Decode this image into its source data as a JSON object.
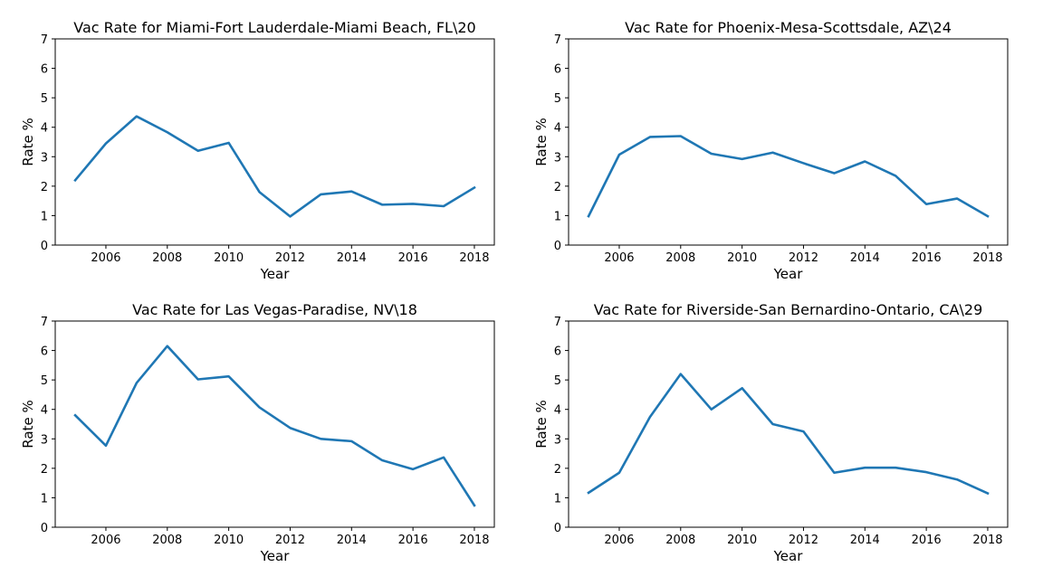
{
  "chart_data": [
    {
      "type": "line",
      "title": "Vac Rate for Miami-Fort Lauderdale-Miami Beach, FL\\20",
      "xlabel": "Year",
      "ylabel": "Rate %",
      "xlim": [
        2004.35,
        2018.65
      ],
      "ylim": [
        0,
        7
      ],
      "xticks": [
        "2006",
        "2008",
        "2010",
        "2012",
        "2014",
        "2016",
        "2018"
      ],
      "yticks": [
        "0",
        "1",
        "2",
        "3",
        "4",
        "5",
        "6",
        "7"
      ],
      "color": "#1f77b4",
      "grid": false,
      "x": [
        2005,
        2006,
        2007,
        2008,
        2009,
        2010,
        2011,
        2012,
        2013,
        2014,
        2015,
        2016,
        2017,
        2018
      ],
      "values": [
        2.2,
        3.45,
        4.37,
        3.83,
        3.2,
        3.47,
        1.8,
        0.97,
        1.72,
        1.82,
        1.37,
        1.4,
        1.32,
        1.95
      ]
    },
    {
      "type": "line",
      "title": "Vac Rate for Phoenix-Mesa-Scottsdale, AZ\\24",
      "xlabel": "Year",
      "ylabel": "Rate %",
      "xlim": [
        2004.35,
        2018.65
      ],
      "ylim": [
        0,
        7
      ],
      "xticks": [
        "2006",
        "2008",
        "2010",
        "2012",
        "2014",
        "2016",
        "2018"
      ],
      "yticks": [
        "0",
        "1",
        "2",
        "3",
        "4",
        "5",
        "6",
        "7"
      ],
      "color": "#1f77b4",
      "grid": false,
      "x": [
        2005,
        2006,
        2007,
        2008,
        2009,
        2010,
        2011,
        2012,
        2013,
        2014,
        2015,
        2016,
        2017,
        2018
      ],
      "values": [
        0.98,
        3.07,
        3.67,
        3.7,
        3.1,
        2.92,
        3.14,
        2.78,
        2.44,
        2.84,
        2.35,
        1.39,
        1.58,
        0.98
      ]
    },
    {
      "type": "line",
      "title": "Vac Rate for Las Vegas-Paradise, NV\\18",
      "xlabel": "Year",
      "ylabel": "Rate %",
      "xlim": [
        2004.35,
        2018.65
      ],
      "ylim": [
        0,
        7
      ],
      "xticks": [
        "2006",
        "2008",
        "2010",
        "2012",
        "2014",
        "2016",
        "2018"
      ],
      "yticks": [
        "0",
        "1",
        "2",
        "3",
        "4",
        "5",
        "6",
        "7"
      ],
      "color": "#1f77b4",
      "grid": false,
      "x": [
        2005,
        2006,
        2007,
        2008,
        2009,
        2010,
        2011,
        2012,
        2013,
        2014,
        2015,
        2016,
        2017,
        2018
      ],
      "values": [
        3.8,
        2.77,
        4.9,
        6.15,
        5.02,
        5.12,
        4.07,
        3.37,
        3.0,
        2.92,
        2.27,
        1.97,
        2.37,
        0.74
      ]
    },
    {
      "type": "line",
      "title": "Vac Rate for Riverside-San Bernardino-Ontario, CA\\29",
      "xlabel": "Year",
      "ylabel": "Rate %",
      "xlim": [
        2004.35,
        2018.65
      ],
      "ylim": [
        0,
        7
      ],
      "xticks": [
        "2006",
        "2008",
        "2010",
        "2012",
        "2014",
        "2016",
        "2018"
      ],
      "yticks": [
        "0",
        "1",
        "2",
        "3",
        "4",
        "5",
        "6",
        "7"
      ],
      "color": "#1f77b4",
      "grid": false,
      "x": [
        2005,
        2006,
        2007,
        2008,
        2009,
        2010,
        2011,
        2012,
        2013,
        2014,
        2015,
        2016,
        2017,
        2018
      ],
      "values": [
        1.17,
        1.85,
        3.74,
        5.2,
        4.0,
        4.72,
        3.5,
        3.25,
        1.85,
        2.02,
        2.02,
        1.87,
        1.62,
        1.15
      ]
    }
  ]
}
